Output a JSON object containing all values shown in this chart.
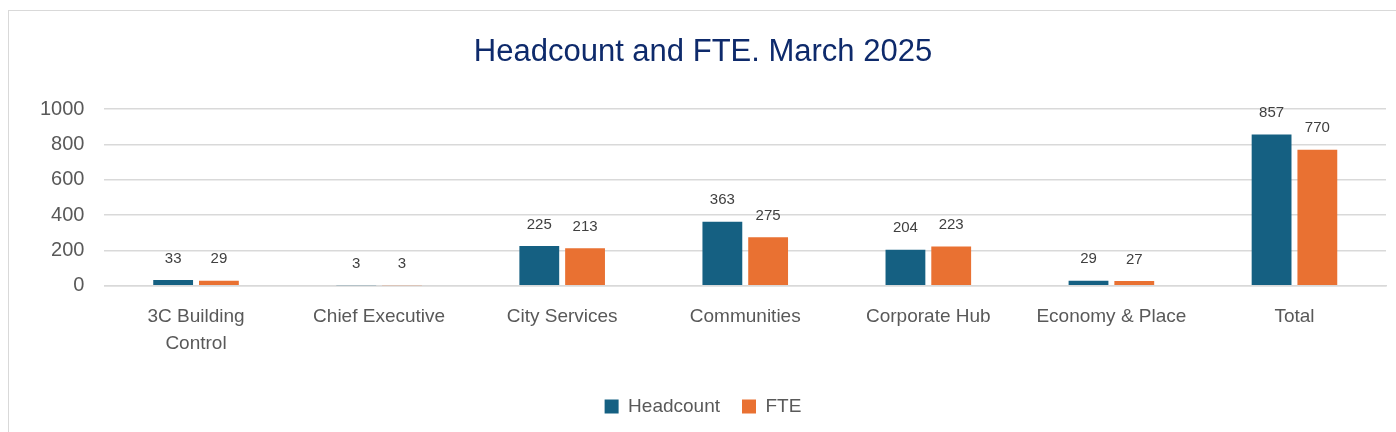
{
  "chart_data": {
    "type": "bar",
    "title": "Headcount and FTE. March 2025",
    "categories": [
      "3C Building Control",
      "Chief Executive",
      "City Services",
      "Communities",
      "Corporate Hub",
      "Economy & Place",
      "Total"
    ],
    "series": [
      {
        "name": "Headcount",
        "color": "#156082",
        "values": [
          33,
          3,
          225,
          363,
          204,
          29,
          857
        ]
      },
      {
        "name": "FTE",
        "color": "#e97132",
        "values": [
          29,
          3,
          213,
          275,
          223,
          27,
          770
        ]
      }
    ],
    "ylim": [
      0,
      1000
    ],
    "yticks": [
      0,
      200,
      400,
      600,
      800,
      1000
    ],
    "grid": "y",
    "legend": "bottom",
    "data_labels": true
  }
}
